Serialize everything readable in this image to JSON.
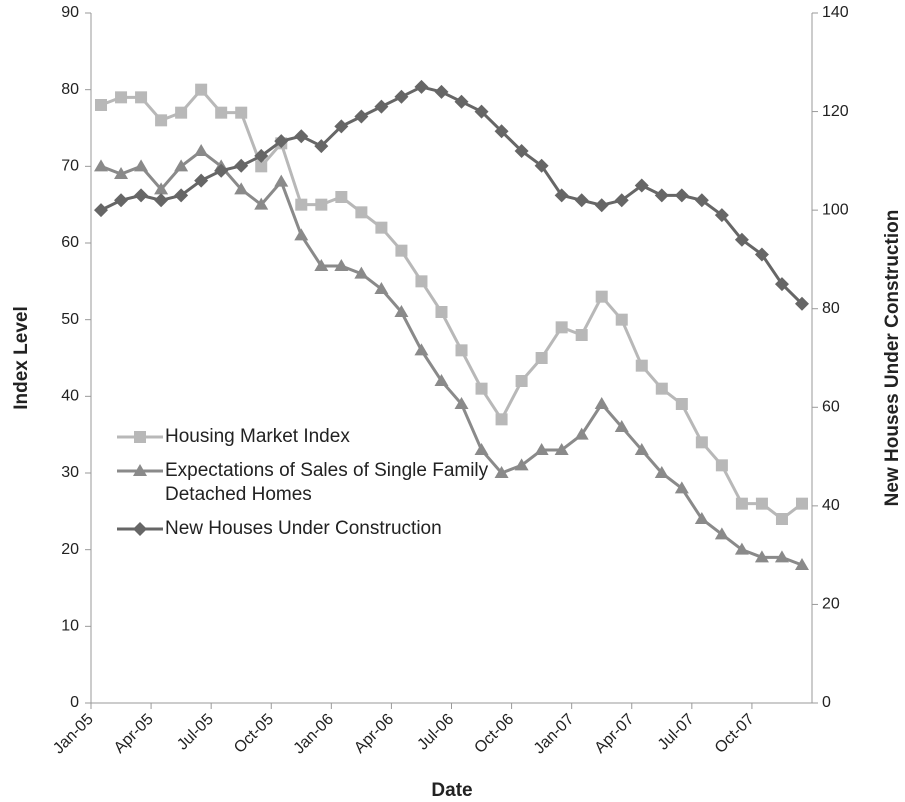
{
  "chart_data": {
    "type": "line",
    "categories": [
      "Jan-05",
      null,
      null,
      "Apr-05",
      null,
      null,
      "Jul-05",
      null,
      null,
      "Oct-05",
      null,
      null,
      "Jan-06",
      null,
      null,
      "Apr-06",
      null,
      null,
      "Jul-06",
      null,
      null,
      "Oct-06",
      null,
      null,
      "Jan-07",
      null,
      null,
      "Apr-07",
      null,
      null,
      "Jul-07",
      null,
      null,
      "Oct-07",
      null,
      null
    ],
    "series": [
      {
        "name": "Housing Market Index",
        "color": "#b8b8b8",
        "marker": "square",
        "values": [
          78,
          79,
          79,
          76,
          77,
          80,
          77,
          77,
          70,
          73,
          65,
          65,
          66,
          64,
          62,
          59,
          55,
          51,
          46,
          41,
          37,
          42,
          45,
          49,
          48,
          53,
          50,
          44,
          41,
          39,
          34,
          31,
          26,
          26,
          24,
          26
        ]
      },
      {
        "name": "Expectations of Sales of Single Family Detached Homes",
        "color": "#8a8a8a",
        "marker": "triangle",
        "values": [
          70,
          69,
          70,
          67,
          70,
          72,
          70,
          67,
          65,
          68,
          61,
          57,
          57,
          56,
          54,
          51,
          46,
          42,
          39,
          33,
          30,
          31,
          33,
          33,
          35,
          39,
          36,
          33,
          30,
          28,
          24,
          22,
          20,
          19,
          19,
          18
        ]
      },
      {
        "name": "New Houses Under Construction",
        "color": "#666666",
        "marker": "diamond",
        "axis": "y2",
        "values": [
          100,
          102,
          103,
          102,
          103,
          106,
          108,
          109,
          111,
          114,
          115,
          113,
          117,
          119,
          121,
          123,
          125,
          124,
          122,
          120,
          116,
          112,
          109,
          103,
          102,
          101,
          102,
          105,
          103,
          103,
          102,
          99,
          94,
          91,
          85,
          81
        ]
      }
    ],
    "ylabel": "Index Level",
    "y2label": "New Houses Under Construction",
    "xlabel": "Date",
    "ylim": [
      0,
      90
    ],
    "yticks": [
      0,
      10,
      20,
      30,
      40,
      50,
      60,
      70,
      80,
      90
    ],
    "y2lim": [
      0,
      140
    ],
    "y2ticks": [
      0,
      20,
      40,
      60,
      80,
      100,
      120,
      140
    ],
    "grid": false,
    "legend": "lower left"
  }
}
